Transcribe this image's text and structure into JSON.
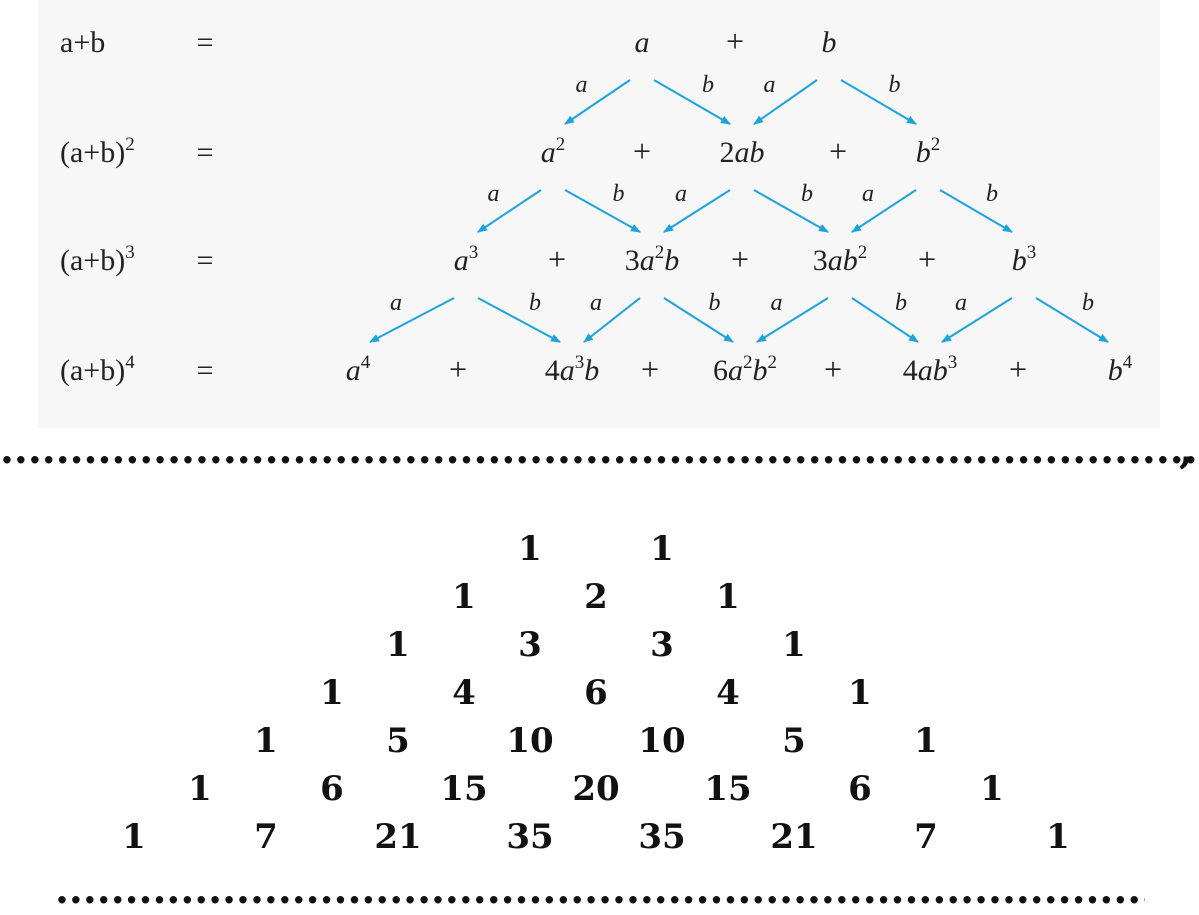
{
  "colors": {
    "arrow": "#1aa3dd",
    "panel": "#f7f7f7",
    "text": "#222222"
  },
  "operator": "+",
  "equals": "=",
  "arrow_labels": {
    "left": "a",
    "right": "b"
  },
  "rows": [
    {
      "lhs": [
        {
          "t": "a+b"
        }
      ],
      "terms": [
        [
          {
            "t": "a",
            "i": true
          }
        ],
        [
          {
            "t": "b",
            "i": true
          }
        ]
      ]
    },
    {
      "lhs": [
        {
          "t": "(a+b)"
        },
        {
          "t": "2",
          "sup": true
        }
      ],
      "terms": [
        [
          {
            "t": "a",
            "i": true
          },
          {
            "t": "2",
            "sup": true
          }
        ],
        [
          {
            "t": "2"
          },
          {
            "t": "ab",
            "i": true
          }
        ],
        [
          {
            "t": "b",
            "i": true
          },
          {
            "t": "2",
            "sup": true
          }
        ]
      ]
    },
    {
      "lhs": [
        {
          "t": "(a+b)"
        },
        {
          "t": "3",
          "sup": true
        }
      ],
      "terms": [
        [
          {
            "t": "a",
            "i": true
          },
          {
            "t": "3",
            "sup": true
          }
        ],
        [
          {
            "t": "3"
          },
          {
            "t": "a",
            "i": true
          },
          {
            "t": "2",
            "sup": true
          },
          {
            "t": "b",
            "i": true
          }
        ],
        [
          {
            "t": "3"
          },
          {
            "t": "ab",
            "i": true
          },
          {
            "t": "2",
            "sup": true
          }
        ],
        [
          {
            "t": "b",
            "i": true
          },
          {
            "t": "3",
            "sup": true
          }
        ]
      ]
    },
    {
      "lhs": [
        {
          "t": "(a+b)"
        },
        {
          "t": "4",
          "sup": true
        }
      ],
      "terms": [
        [
          {
            "t": "a",
            "i": true
          },
          {
            "t": "4",
            "sup": true
          }
        ],
        [
          {
            "t": "4"
          },
          {
            "t": "a",
            "i": true
          },
          {
            "t": "3",
            "sup": true
          },
          {
            "t": "b",
            "i": true
          }
        ],
        [
          {
            "t": "6"
          },
          {
            "t": "a",
            "i": true
          },
          {
            "t": "2",
            "sup": true
          },
          {
            "t": "b",
            "i": true
          },
          {
            "t": "2",
            "sup": true
          }
        ],
        [
          {
            "t": "4"
          },
          {
            "t": "ab",
            "i": true
          },
          {
            "t": "3",
            "sup": true
          }
        ],
        [
          {
            "t": "b",
            "i": true
          },
          {
            "t": "4",
            "sup": true
          }
        ]
      ]
    }
  ],
  "separator_trailing": ",",
  "pascal_rows": [
    [
      1,
      1
    ],
    [
      1,
      2,
      1
    ],
    [
      1,
      3,
      3,
      1
    ],
    [
      1,
      4,
      6,
      4,
      1
    ],
    [
      1,
      5,
      10,
      10,
      5,
      1
    ],
    [
      1,
      6,
      15,
      20,
      15,
      6,
      1
    ],
    [
      1,
      7,
      21,
      35,
      35,
      21,
      7,
      1
    ]
  ]
}
